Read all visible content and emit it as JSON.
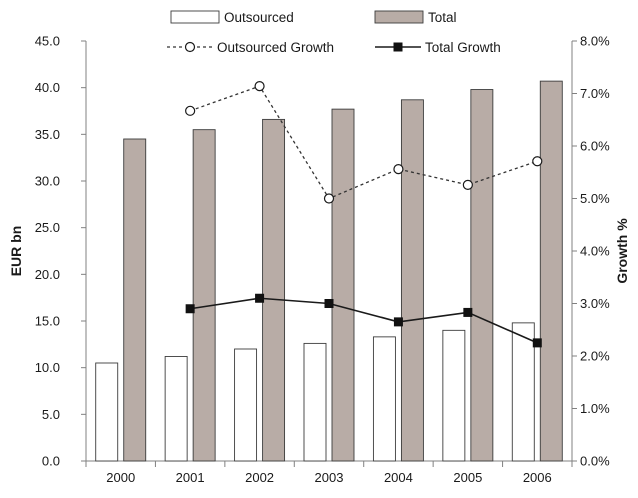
{
  "chart_data": {
    "type": "bar",
    "categories": [
      "2000",
      "2001",
      "2002",
      "2003",
      "2004",
      "2005",
      "2006"
    ],
    "series": [
      {
        "name": "Outsourced",
        "kind": "bar",
        "axis": "left",
        "color": "#ffffff",
        "values": [
          10.5,
          11.2,
          12.0,
          12.6,
          13.3,
          14.0,
          14.8
        ]
      },
      {
        "name": "Total",
        "kind": "bar",
        "axis": "left",
        "color": "#b8aca6",
        "values": [
          34.5,
          35.5,
          36.6,
          37.7,
          38.7,
          39.8,
          40.7
        ]
      },
      {
        "name": "Outsourced Growth",
        "kind": "line",
        "axis": "right",
        "style": "dotted-open-circle",
        "values": [
          null,
          6.67,
          7.14,
          5.0,
          5.56,
          5.26,
          5.71
        ]
      },
      {
        "name": "Total Growth",
        "kind": "line",
        "axis": "right",
        "style": "solid-filled-square",
        "values": [
          null,
          2.9,
          3.1,
          3.0,
          2.65,
          2.83,
          2.25
        ]
      }
    ],
    "ylabel": "EUR bn",
    "ylabel_right": "Growth %",
    "ylim": [
      0,
      45
    ],
    "ylim_right": [
      0,
      8
    ],
    "yticks": [
      "0.0",
      "5.0",
      "10.0",
      "15.0",
      "20.0",
      "25.0",
      "30.0",
      "35.0",
      "40.0",
      "45.0"
    ],
    "yticks_right": [
      "0.0%",
      "1.0%",
      "2.0%",
      "3.0%",
      "4.0%",
      "5.0%",
      "6.0%",
      "7.0%",
      "8.0%"
    ],
    "grid": false,
    "legend": "top"
  }
}
